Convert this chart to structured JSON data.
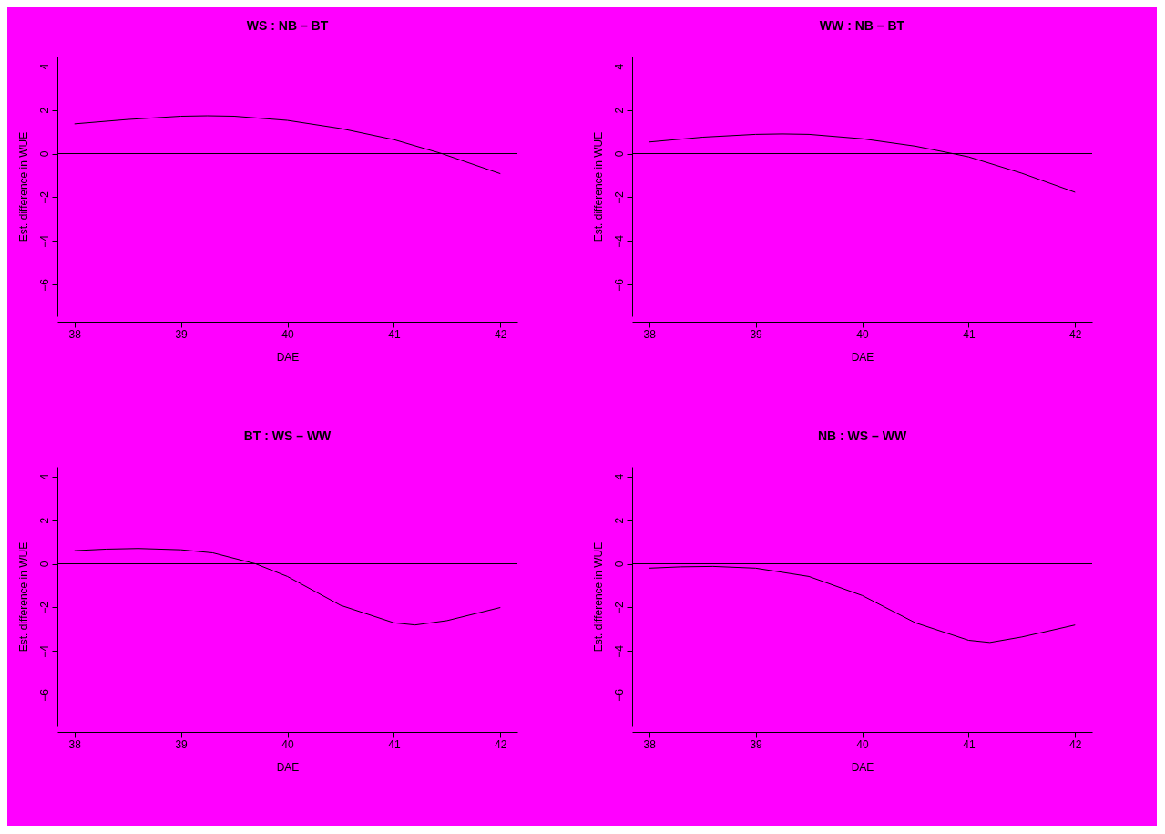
{
  "chart_data": [
    {
      "type": "line",
      "title": "WS : NB – BT",
      "xlabel": "DAE",
      "ylabel": "Est. difference in WUE",
      "x": [
        38,
        38.5,
        39,
        39.25,
        39.5,
        40,
        40.5,
        41,
        41.45,
        42
      ],
      "series": [
        {
          "color": "#000000",
          "values": [
            1.36,
            1.56,
            1.71,
            1.73,
            1.71,
            1.52,
            1.15,
            0.64,
            0,
            -0.92
          ]
        }
      ],
      "xlim": [
        37.84,
        42.16
      ],
      "ylim": [
        -7.44,
        4.44
      ],
      "xticks": [
        38,
        39,
        40,
        41,
        42
      ],
      "yticks": [
        -6,
        -4,
        -2,
        0,
        2,
        4
      ],
      "grid": false,
      "ref_lines": [
        {
          "axis": "y",
          "value": 0
        }
      ]
    },
    {
      "type": "line",
      "title": "WW : NB – BT",
      "xlabel": "DAE",
      "ylabel": "Est. difference in WUE",
      "x": [
        38,
        38.5,
        39,
        39.25,
        39.5,
        40,
        40.5,
        40.85,
        41,
        41.5,
        42
      ],
      "series": [
        {
          "color": "#000000",
          "values": [
            0.53,
            0.75,
            0.88,
            0.9,
            0.88,
            0.68,
            0.34,
            0,
            -0.15,
            -0.9,
            -1.77
          ]
        }
      ],
      "xlim": [
        37.84,
        42.16
      ],
      "ylim": [
        -7.44,
        4.44
      ],
      "xticks": [
        38,
        39,
        40,
        41,
        42
      ],
      "yticks": [
        -6,
        -4,
        -2,
        0,
        2,
        4
      ],
      "grid": false,
      "ref_lines": [
        {
          "axis": "y",
          "value": 0
        }
      ]
    },
    {
      "type": "line",
      "title": "BT : WS – WW",
      "xlabel": "DAE",
      "ylabel": "Est. difference in WUE",
      "x": [
        38,
        38.3,
        38.6,
        39,
        39.3,
        39.7,
        40,
        40.5,
        41,
        41.2,
        41.5,
        42
      ],
      "series": [
        {
          "color": "#000000",
          "values": [
            0.6,
            0.67,
            0.7,
            0.64,
            0.5,
            0,
            -0.58,
            -1.9,
            -2.7,
            -2.8,
            -2.6,
            -2.0
          ]
        }
      ],
      "xlim": [
        37.84,
        42.16
      ],
      "ylim": [
        -7.44,
        4.44
      ],
      "xticks": [
        38,
        39,
        40,
        41,
        42
      ],
      "yticks": [
        -6,
        -4,
        -2,
        0,
        2,
        4
      ],
      "grid": false,
      "ref_lines": [
        {
          "axis": "y",
          "value": 0
        }
      ]
    },
    {
      "type": "line",
      "title": "NB : WS – WW",
      "xlabel": "DAE",
      "ylabel": "Est. difference in WUE",
      "x": [
        38,
        38.3,
        38.6,
        39,
        39.5,
        40,
        40.5,
        41,
        41.2,
        41.5,
        42
      ],
      "series": [
        {
          "color": "#000000",
          "values": [
            -0.2,
            -0.14,
            -0.12,
            -0.2,
            -0.58,
            -1.45,
            -2.7,
            -3.5,
            -3.6,
            -3.35,
            -2.8
          ]
        }
      ],
      "xlim": [
        37.84,
        42.16
      ],
      "ylim": [
        -7.44,
        4.44
      ],
      "xticks": [
        38,
        39,
        40,
        41,
        42
      ],
      "yticks": [
        -6,
        -4,
        -2,
        0,
        2,
        4
      ],
      "grid": false,
      "ref_lines": [
        {
          "axis": "y",
          "value": 0
        }
      ]
    }
  ]
}
